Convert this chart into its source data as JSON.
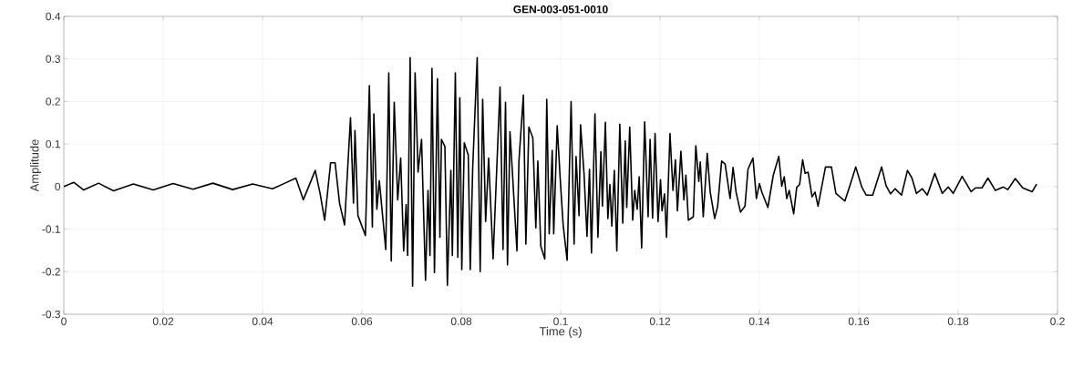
{
  "chart_data": {
    "type": "line",
    "title": "GEN-003-051-0010",
    "xlabel": "Time (s)",
    "ylabel": "Amplitude",
    "color": "#000000",
    "grid": true,
    "xlim": [
      0,
      0.2
    ],
    "ylim": [
      -0.3,
      0.4
    ],
    "xticks": [
      0,
      0.02,
      0.04,
      0.06,
      0.08,
      0.1,
      0.12,
      0.14,
      0.16,
      0.18,
      0.2
    ],
    "yticks": [
      -0.3,
      -0.2,
      -0.1,
      0,
      0.1,
      0.2,
      0.3,
      0.4
    ],
    "x": [
      0,
      0.002,
      0.004,
      0.007,
      0.01,
      0.014,
      0.018,
      0.022,
      0.026,
      0.03,
      0.034,
      0.038,
      0.042,
      0.0445,
      0.0467,
      0.0482,
      0.0506,
      0.0516,
      0.0525,
      0.0537,
      0.0546,
      0.0555,
      0.0565,
      0.0577,
      0.0583,
      0.0586,
      0.0592,
      0.0607,
      0.0615,
      0.0621,
      0.0624,
      0.063,
      0.0635,
      0.0648,
      0.0654,
      0.0659,
      0.0665,
      0.0672,
      0.0678,
      0.0684,
      0.0689,
      0.0692,
      0.0697,
      0.0702,
      0.0707,
      0.0713,
      0.072,
      0.0728,
      0.0733,
      0.0737,
      0.0741,
      0.0746,
      0.0752,
      0.0757,
      0.076,
      0.0767,
      0.0772,
      0.0779,
      0.0782,
      0.0788,
      0.0793,
      0.0797,
      0.0801,
      0.0806,
      0.0814,
      0.0818,
      0.0823,
      0.0832,
      0.0838,
      0.0843,
      0.0849,
      0.0855,
      0.0864,
      0.0878,
      0.0884,
      0.0889,
      0.0893,
      0.0898,
      0.0903,
      0.0912,
      0.0916,
      0.0925,
      0.093,
      0.0936,
      0.0944,
      0.095,
      0.0954,
      0.096,
      0.0968,
      0.0972,
      0.0977,
      0.0983,
      0.0986,
      0.0993,
      0.0999,
      0.1005,
      0.1013,
      0.1021,
      0.1027,
      0.1031,
      0.1037,
      0.104,
      0.1047,
      0.1053,
      0.1058,
      0.1062,
      0.1069,
      0.1075,
      0.1081,
      0.1084,
      0.109,
      0.1095,
      0.1099,
      0.1103,
      0.1108,
      0.1113,
      0.1119,
      0.1125,
      0.113,
      0.1133,
      0.1139,
      0.1145,
      0.1149,
      0.1154,
      0.1158,
      0.1163,
      0.1169,
      0.1176,
      0.118,
      0.1185,
      0.119,
      0.1196,
      0.1201,
      0.1204,
      0.1209,
      0.1213,
      0.122,
      0.1226,
      0.1231,
      0.1235,
      0.1242,
      0.1248,
      0.1252,
      0.1257,
      0.1267,
      0.1272,
      0.1278,
      0.1281,
      0.1287,
      0.1295,
      0.1301,
      0.131,
      0.1316,
      0.1324,
      0.1331,
      0.1341,
      0.1347,
      0.1353,
      0.1362,
      0.1371,
      0.1377,
      0.1387,
      0.1394,
      0.14,
      0.1405,
      0.1417,
      0.1428,
      0.1439,
      0.1445,
      0.145,
      0.1455,
      0.146,
      0.1469,
      0.1475,
      0.1481,
      0.1487,
      0.1492,
      0.1498,
      0.1506,
      0.1512,
      0.1518,
      0.1533,
      0.1545,
      0.1554,
      0.1572,
      0.1582,
      0.1594,
      0.1606,
      0.1615,
      0.1628,
      0.1646,
      0.1655,
      0.1664,
      0.1673,
      0.1686,
      0.1698,
      0.1707,
      0.1716,
      0.1728,
      0.1738,
      0.1753,
      0.1768,
      0.178,
      0.179,
      0.1808,
      0.1826,
      0.1835,
      0.1848,
      0.186,
      0.1875,
      0.1891,
      0.19,
      0.1915,
      0.193,
      0.1949,
      0.1958
    ],
    "values": [
      0,
      0.01,
      -0.008,
      0.008,
      -0.01,
      0.006,
      -0.008,
      0.007,
      -0.006,
      0.008,
      -0.007,
      0.006,
      -0.005,
      0.008,
      0.02,
      -0.031,
      0.038,
      -0.017,
      -0.079,
      0.056,
      0.056,
      -0.039,
      -0.09,
      0.162,
      -0.039,
      0.132,
      -0.068,
      -0.115,
      0.237,
      -0.095,
      0.171,
      -0.053,
      0.014,
      -0.148,
      0.267,
      -0.175,
      0.198,
      -0.031,
      0.067,
      -0.151,
      -0.042,
      -0.162,
      0.303,
      -0.234,
      0.267,
      0.034,
      0.111,
      -0.22,
      -0.009,
      -0.162,
      0.278,
      -0.202,
      0.254,
      -0.119,
      0.111,
      0.094,
      -0.232,
      0.038,
      -0.162,
      0.267,
      -0.166,
      0.209,
      -0.195,
      0.103,
      0.074,
      -0.195,
      0.045,
      0.303,
      -0.2,
      0.205,
      -0.082,
      0.067,
      -0.17,
      0.234,
      -0.148,
      0.198,
      -0.184,
      0.129,
      0.031,
      -0.151,
      0.06,
      0.215,
      -0.135,
      0.14,
      0.114,
      -0.097,
      0.06,
      -0.14,
      -0.17,
      0.205,
      -0.111,
      0.085,
      -0.111,
      0.143,
      0.02,
      -0.09,
      -0.173,
      0.2,
      -0.135,
      0.071,
      -0.068,
      0.145,
      0.031,
      -0.117,
      0.041,
      -0.156,
      0.171,
      -0.119,
      0.082,
      -0.046,
      0.151,
      -0.075,
      0.005,
      -0.093,
      0.038,
      -0.151,
      0.147,
      -0.086,
      0.107,
      -0.049,
      0.14,
      -0.079,
      -0.009,
      -0.053,
      0.023,
      -0.144,
      0.152,
      -0.071,
      0.111,
      -0.074,
      0.125,
      -0.082,
      0.016,
      -0.057,
      -0.017,
      -0.119,
      0.125,
      -0.009,
      0.063,
      -0.057,
      0.083,
      -0.031,
      0.027,
      -0.079,
      -0.071,
      0.096,
      0.012,
      0.058,
      -0.071,
      0.078,
      -0.013,
      -0.075,
      -0.046,
      0.06,
      0.053,
      -0.028,
      0.045,
      -0.013,
      -0.06,
      -0.046,
      0.041,
      0.067,
      -0.028,
      0.007,
      -0.013,
      -0.049,
      0.027,
      0.071,
      0.001,
      0.023,
      -0.028,
      -0.009,
      -0.064,
      -0.002,
      0.005,
      0.063,
      0.031,
      0.034,
      -0.024,
      -0.013,
      -0.046,
      0.046,
      0.046,
      -0.016,
      -0.034,
      0.002,
      0.046,
      -0.001,
      -0.02,
      -0.02,
      0.046,
      0.002,
      -0.017,
      -0.005,
      -0.02,
      0.038,
      0.02,
      -0.016,
      -0.005,
      -0.02,
      0.031,
      -0.016,
      -0.001,
      -0.016,
      0.024,
      -0.012,
      -0.003,
      -0.003,
      0.02,
      -0.009,
      -0.001,
      -0.007,
      0.019,
      -0.003,
      -0.012,
      0.006
    ]
  }
}
